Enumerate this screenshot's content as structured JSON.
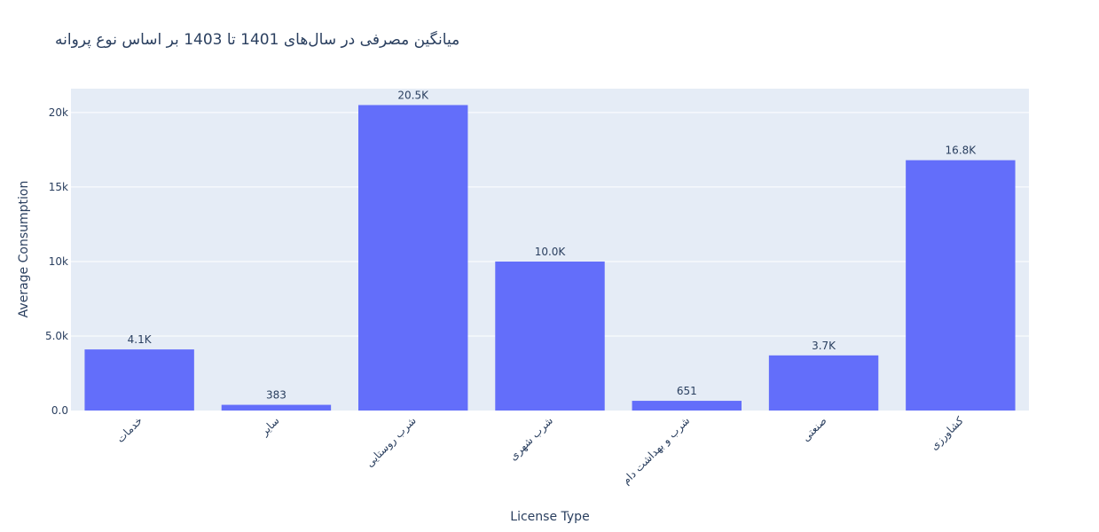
{
  "chart_data": {
    "type": "bar",
    "title": "میانگین مصرفی در سال‌های 1401 تا 1403 بر اساس نوع پروانه",
    "xlabel": "License Type",
    "ylabel": "Average Consumption",
    "categories": [
      "خدمات",
      "سایر",
      "شرب روستایی",
      "شرب شهری",
      "شرب و بهداشت دام",
      "صنعتی",
      "کشاورزی"
    ],
    "values": [
      4100,
      383,
      20500,
      10000,
      651,
      3700,
      16800
    ],
    "data_labels": [
      "4.1K",
      "383",
      "20.5K",
      "10.0K",
      "651",
      "3.7K",
      "16.8K"
    ],
    "ylim": [
      0,
      21600
    ],
    "y_ticks": [
      0,
      5000,
      10000,
      15000,
      20000
    ],
    "y_tick_labels": [
      "0.0",
      "5.0k",
      "10k",
      "15k",
      "20k"
    ],
    "grid": true,
    "colors": {
      "bar": "#636efa",
      "plot_bg": "#e5ecf6",
      "grid": "#ffffff",
      "text": "#2a3f5f"
    }
  }
}
